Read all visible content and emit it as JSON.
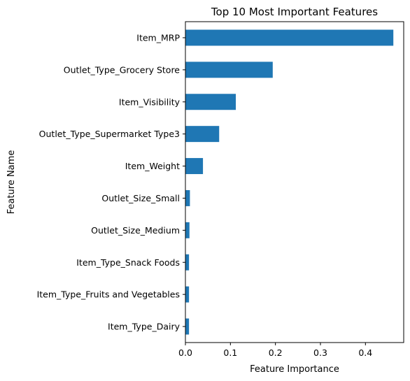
{
  "chart_data": {
    "type": "bar",
    "orientation": "horizontal",
    "title": "Top 10 Most Important Features",
    "xlabel": "Feature Importance",
    "ylabel": "Feature Name",
    "categories": [
      "Item_MRP",
      "Outlet_Type_Grocery Store",
      "Item_Visibility",
      "Outlet_Type_Supermarket Type3",
      "Item_Weight",
      "Outlet_Size_Small",
      "Outlet_Size_Medium",
      "Item_Type_Snack Foods",
      "Item_Type_Fruits and Vegetables",
      "Item_Type_Dairy"
    ],
    "values": [
      0.462,
      0.194,
      0.112,
      0.075,
      0.039,
      0.01,
      0.009,
      0.008,
      0.008,
      0.008
    ],
    "xlim": [
      0,
      0.485
    ],
    "xticks": [
      0.0,
      0.1,
      0.2,
      0.3,
      0.4
    ],
    "xtick_labels": [
      "0.0",
      "0.1",
      "0.2",
      "0.3",
      "0.4"
    ],
    "grid": false,
    "bar_color": "#1f77b4"
  }
}
